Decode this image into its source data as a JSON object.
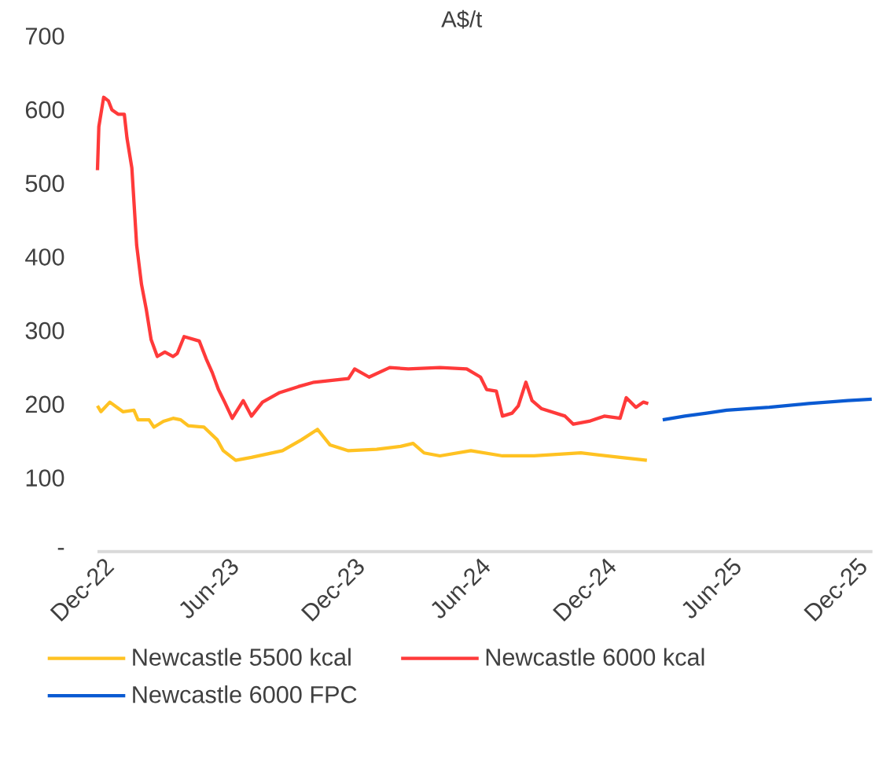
{
  "chart_data": {
    "type": "line",
    "ylabel": "A$/t",
    "legend": "bottom",
    "xlim": [
      "2022-12-01",
      "2026-01-01"
    ],
    "xticks": [
      {
        "value": "2022-12-01",
        "label": "Dec-22"
      },
      {
        "value": "2023-06-01",
        "label": "Jun-23"
      },
      {
        "value": "2023-12-01",
        "label": "Dec-23"
      },
      {
        "value": "2024-06-01",
        "label": "Jun-24"
      },
      {
        "value": "2024-12-01",
        "label": "Dec-24"
      },
      {
        "value": "2025-06-01",
        "label": "Jun-25"
      },
      {
        "value": "2025-12-01",
        "label": "Dec-25"
      }
    ],
    "ylim": [
      0,
      700
    ],
    "yticks": [
      {
        "value": 0,
        "label": "-"
      },
      100,
      200,
      300,
      400,
      500,
      600,
      700
    ],
    "series": [
      {
        "name": "Newcastle 5500 kcal",
        "color": "#ffc222",
        "x": [
          "2022-12-01",
          "2022-12-06",
          "2022-12-19",
          "2023-01-07",
          "2023-01-23",
          "2023-01-29",
          "2023-02-14",
          "2023-02-21",
          "2023-03-07",
          "2023-03-21",
          "2023-04-01",
          "2023-04-12",
          "2023-05-05",
          "2023-05-24",
          "2023-06-02",
          "2023-06-20",
          "2023-07-13",
          "2023-08-27",
          "2023-09-24",
          "2023-10-17",
          "2023-11-04",
          "2023-12-01",
          "2024-01-11",
          "2024-02-15",
          "2024-03-04",
          "2024-03-20",
          "2024-04-12",
          "2024-05-27",
          "2024-07-12",
          "2024-08-27",
          "2024-11-03",
          "2024-12-30",
          "2025-02-07"
        ],
        "values": [
          198,
          190,
          203,
          190,
          192,
          179,
          179,
          169,
          177,
          181,
          179,
          171,
          169,
          152,
          137,
          124,
          128,
          137,
          152,
          166,
          145,
          137,
          139,
          143,
          147,
          134,
          130,
          137,
          130,
          130,
          134,
          128,
          124
        ]
      },
      {
        "name": "Newcastle 6000 kcal",
        "color": "#ff3a3a",
        "x": [
          "2022-12-01",
          "2022-12-03",
          "2022-12-10",
          "2022-12-17",
          "2022-12-22",
          "2022-12-31",
          "2023-01-09",
          "2023-01-13",
          "2023-01-20",
          "2023-01-27",
          "2023-02-03",
          "2023-02-10",
          "2023-02-17",
          "2023-02-26",
          "2023-03-09",
          "2023-03-21",
          "2023-03-27",
          "2023-04-06",
          "2023-04-28",
          "2023-05-08",
          "2023-05-17",
          "2023-05-26",
          "2023-06-04",
          "2023-06-15",
          "2023-07-01",
          "2023-07-13",
          "2023-07-29",
          "2023-08-23",
          "2023-09-19",
          "2023-10-12",
          "2023-12-01",
          "2023-12-10",
          "2023-12-31",
          "2024-01-30",
          "2024-02-26",
          "2024-04-12",
          "2024-05-21",
          "2024-06-10",
          "2024-06-19",
          "2024-07-03",
          "2024-07-12",
          "2024-07-26",
          "2024-08-04",
          "2024-08-15",
          "2024-08-24",
          "2024-09-07",
          "2024-10-11",
          "2024-10-23",
          "2024-11-15",
          "2024-12-07",
          "2024-12-30",
          "2025-01-08",
          "2025-01-22",
          "2025-02-02",
          "2025-02-09"
        ],
        "values": [
          518,
          577,
          617,
          612,
          600,
          594,
          594,
          561,
          521,
          416,
          363,
          329,
          288,
          265,
          271,
          265,
          269,
          292,
          286,
          262,
          243,
          220,
          203,
          181,
          205,
          184,
          203,
          216,
          224,
          230,
          235,
          248,
          237,
          250,
          248,
          250,
          248,
          237,
          220,
          218,
          184,
          188,
          198,
          230,
          205,
          194,
          184,
          173,
          177,
          184,
          181,
          209,
          196,
          203,
          201
        ]
      },
      {
        "name": "Newcastle 6000 FPC",
        "color": "#0a5ad2",
        "x": [
          "2025-03-02",
          "2025-04-03",
          "2025-05-05",
          "2025-06-03",
          "2025-08-04",
          "2025-09-30",
          "2025-11-26",
          "2025-12-31"
        ],
        "values": [
          179,
          184,
          188,
          192,
          196,
          201,
          205,
          207
        ]
      }
    ]
  }
}
